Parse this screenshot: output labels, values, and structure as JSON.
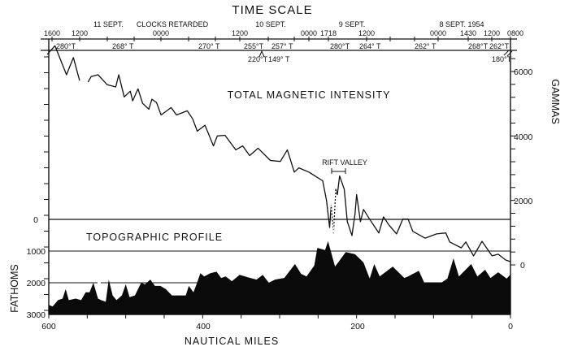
{
  "chart_data": [
    {
      "type": "line",
      "title": "TOTAL MAGNETIC INTENSITY",
      "xlabel": "NAUTICAL MILES",
      "ylabel": "GAMMAS",
      "xlim": [
        600,
        0
      ],
      "ylim": [
        0,
        6000
      ],
      "y_ticks": [
        "0",
        "2000",
        "4000",
        "6000"
      ],
      "series": [
        {
          "x": [
            602,
            592,
            577,
            568,
            560
          ],
          "y": [
            6530,
            6800,
            5900,
            6430,
            5720
          ]
        },
        {
          "x": [
            549,
            545,
            536,
            524,
            513,
            509,
            502,
            494,
            491,
            484,
            478,
            470,
            466,
            460,
            454,
            441,
            434,
            420,
            413,
            407,
            397,
            386,
            381,
            371,
            357,
            348,
            339,
            328,
            312,
            299,
            290,
            281,
            275,
            262,
            244,
            239,
            235,
            233,
            230,
            227,
            225,
            222,
            216,
            212,
            206,
            202,
            200,
            195,
            191,
            181,
            171,
            165,
            158,
            148,
            140,
            133,
            127,
            111,
            96,
            84,
            79,
            64,
            58,
            48,
            37,
            24,
            16,
            6,
            0
          ],
          "y": [
            5670,
            5840,
            5900,
            5590,
            5520,
            5900,
            5210,
            5390,
            5090,
            5460,
            5010,
            4830,
            5140,
            5040,
            4650,
            4880,
            4650,
            4780,
            4530,
            4150,
            4330,
            3690,
            4000,
            4020,
            3570,
            3690,
            3390,
            3620,
            3240,
            3210,
            3570,
            2880,
            3010,
            2880,
            2610,
            2000,
            1160,
            1850,
            990,
            2350,
            2180,
            2760,
            2350,
            1340,
            910,
            1590,
            2180,
            1340,
            1720,
            1340,
            990,
            1490,
            1240,
            960,
            1420,
            1420,
            1040,
            830,
            960,
            990,
            710,
            530,
            710,
            280,
            730,
            280,
            330,
            150,
            100
          ]
        }
      ],
      "annotation": "RIFT VALLEY",
      "annotation_range_miles": [
        232,
        214
      ]
    },
    {
      "type": "area",
      "title": "TOPOGRAPHIC PROFILE",
      "xlabel": "NAUTICAL MILES",
      "ylabel": "FATHOMS",
      "xlim": [
        600,
        0
      ],
      "ylim": [
        3000,
        0
      ],
      "x_ticks": [
        "600",
        "400",
        "200",
        "0"
      ],
      "y_ticks": [
        "0",
        "1000",
        "2000",
        "3000"
      ],
      "x": [
        600,
        595,
        588,
        582,
        578,
        574,
        565,
        558,
        552,
        547,
        542,
        536,
        532,
        526,
        522,
        517,
        512,
        505,
        500,
        495,
        488,
        480,
        475,
        468,
        462,
        455,
        448,
        440,
        430,
        422,
        418,
        412,
        408,
        403,
        398,
        390,
        382,
        376,
        370,
        362,
        352,
        345,
        338,
        330,
        322,
        314,
        306,
        294,
        280,
        272,
        265,
        255,
        251,
        241,
        237,
        228,
        214,
        202,
        191,
        183,
        177,
        170,
        153,
        138,
        133,
        119,
        112,
        90,
        82,
        74,
        67,
        51,
        43,
        33,
        26,
        16,
        5,
        0
      ],
      "y": [
        2700,
        2750,
        2550,
        2500,
        2200,
        2550,
        2500,
        2550,
        2300,
        2300,
        2000,
        2500,
        2550,
        2600,
        1900,
        2400,
        2550,
        2400,
        2050,
        2450,
        2400,
        2000,
        2050,
        1900,
        2100,
        2100,
        2200,
        2400,
        2400,
        2400,
        2100,
        2300,
        2050,
        1700,
        1800,
        1700,
        1650,
        1850,
        1800,
        1950,
        1750,
        1800,
        1850,
        1900,
        1750,
        2000,
        1900,
        1850,
        1410,
        1720,
        1800,
        1460,
        900,
        970,
        690,
        1490,
        1030,
        1100,
        1360,
        1870,
        1410,
        1800,
        1490,
        1850,
        1800,
        1620,
        2000,
        2000,
        1870,
        1230,
        1800,
        1410,
        1800,
        1590,
        1850,
        1670,
        1870,
        1740
      ]
    }
  ],
  "time_scale": {
    "title": "TIME SCALE",
    "dates": [
      "11 SEPT.",
      "CLOCKS RETARDED",
      "10 SEPT.",
      "9 SEPT.",
      "8 SEPT. 1954"
    ],
    "hours": [
      "1600",
      "1200",
      "0000",
      "1200",
      "0000",
      "1718",
      "1200",
      "0000",
      "1430",
      "1200",
      "0800"
    ],
    "headings": [
      "280°T",
      "268° T",
      "270° T",
      "255°T",
      "257° T",
      "280°T",
      "264° T",
      "262° T",
      "268°T",
      "262°T"
    ],
    "headings_below": [
      "220°T",
      "149° T",
      "180°T"
    ]
  }
}
